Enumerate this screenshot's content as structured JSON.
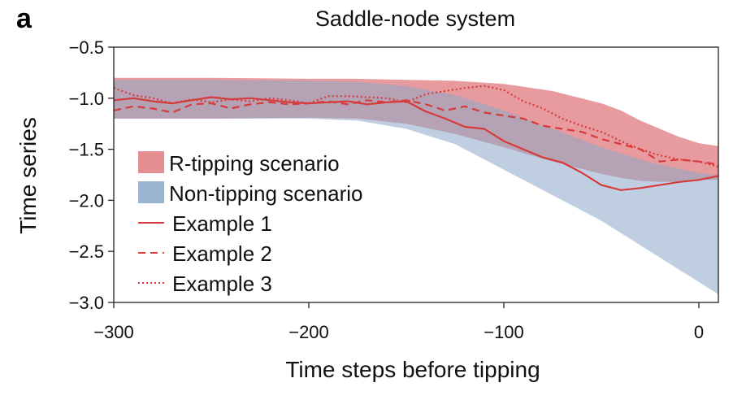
{
  "panel_label": "a",
  "chart_data": {
    "type": "area",
    "title": "Saddle-node system",
    "xlabel": "Time steps before tipping",
    "ylabel": "Time series",
    "xlim": [
      -300,
      10
    ],
    "ylim": [
      -3.0,
      -0.5
    ],
    "xticks": [
      -300,
      -200,
      -100,
      0
    ],
    "xtick_labels": [
      "−300",
      "−200",
      "−100",
      "0"
    ],
    "yticks": [
      -0.5,
      -1.0,
      -1.5,
      -2.0,
      -2.5,
      -3.0
    ],
    "ytick_labels": [
      "−0.5",
      "−1.0",
      "−1.5",
      "−2.0",
      "−2.5",
      "−3.0"
    ],
    "grid": false,
    "legend_position": "lower-left",
    "bands": [
      {
        "name": "R-tipping scenario",
        "color": "#e07a7e",
        "x": [
          -300,
          -250,
          -200,
          -175,
          -150,
          -125,
          -100,
          -75,
          -50,
          -40,
          -30,
          -20,
          -10,
          0,
          10
        ],
        "upper": [
          -0.8,
          -0.8,
          -0.81,
          -0.81,
          -0.82,
          -0.83,
          -0.86,
          -0.93,
          -1.05,
          -1.12,
          -1.22,
          -1.3,
          -1.38,
          -1.44,
          -1.47
        ],
        "lower": [
          -1.2,
          -1.2,
          -1.19,
          -1.2,
          -1.25,
          -1.35,
          -1.48,
          -1.62,
          -1.74,
          -1.78,
          -1.81,
          -1.82,
          -1.82,
          -1.8,
          -1.8
        ]
      },
      {
        "name": "Non-tipping scenario",
        "color": "#8aa8c8",
        "x": [
          -300,
          -250,
          -200,
          -175,
          -150,
          -125,
          -100,
          -75,
          -50,
          -25,
          0,
          10
        ],
        "upper": [
          -0.82,
          -0.82,
          -0.83,
          -0.84,
          -0.88,
          -0.97,
          -1.12,
          -1.3,
          -1.48,
          -1.63,
          -1.73,
          -1.76
        ],
        "lower": [
          -1.2,
          -1.2,
          -1.2,
          -1.22,
          -1.3,
          -1.45,
          -1.7,
          -1.95,
          -2.2,
          -2.5,
          -2.8,
          -2.92
        ]
      }
    ],
    "series": [
      {
        "name": "Example 1",
        "style": "solid",
        "color": "#d73a3a",
        "x": [
          -300,
          -290,
          -280,
          -270,
          -260,
          -250,
          -240,
          -230,
          -220,
          -210,
          -200,
          -190,
          -180,
          -170,
          -160,
          -150,
          -140,
          -130,
          -120,
          -110,
          -100,
          -90,
          -80,
          -70,
          -60,
          -50,
          -40,
          -30,
          -20,
          -10,
          0,
          10
        ],
        "y": [
          -1.02,
          -1.0,
          -1.03,
          -1.05,
          -1.02,
          -0.99,
          -1.01,
          -1.0,
          -1.02,
          -1.04,
          -1.05,
          -1.04,
          -1.03,
          -1.06,
          -1.04,
          -1.03,
          -1.13,
          -1.2,
          -1.28,
          -1.3,
          -1.42,
          -1.5,
          -1.58,
          -1.63,
          -1.73,
          -1.85,
          -1.9,
          -1.88,
          -1.85,
          -1.82,
          -1.8,
          -1.76
        ]
      },
      {
        "name": "Example 2",
        "style": "dashed",
        "color": "#d73a3a",
        "x": [
          -300,
          -290,
          -280,
          -270,
          -260,
          -250,
          -240,
          -230,
          -220,
          -210,
          -200,
          -190,
          -180,
          -170,
          -160,
          -150,
          -140,
          -130,
          -120,
          -110,
          -100,
          -90,
          -80,
          -70,
          -60,
          -50,
          -40,
          -30,
          -20,
          -10,
          0,
          10
        ],
        "y": [
          -1.12,
          -1.08,
          -1.1,
          -1.14,
          -1.06,
          -1.05,
          -1.1,
          -1.06,
          -1.04,
          -1.06,
          -1.05,
          -1.03,
          -1.06,
          -1.02,
          -1.04,
          -1.02,
          -1.06,
          -1.12,
          -1.08,
          -1.14,
          -1.17,
          -1.2,
          -1.27,
          -1.3,
          -1.33,
          -1.4,
          -1.45,
          -1.5,
          -1.62,
          -1.6,
          -1.62,
          -1.65
        ]
      },
      {
        "name": "Example 3",
        "style": "dotted",
        "color": "#d73a3a",
        "x": [
          -300,
          -290,
          -280,
          -270,
          -260,
          -250,
          -240,
          -230,
          -220,
          -210,
          -200,
          -190,
          -180,
          -170,
          -160,
          -150,
          -140,
          -130,
          -120,
          -110,
          -100,
          -90,
          -80,
          -70,
          -60,
          -50,
          -40,
          -30,
          -20,
          -10,
          0,
          10
        ],
        "y": [
          -0.9,
          -0.97,
          -1.0,
          -1.05,
          -1.01,
          -1.04,
          -1.01,
          -1.03,
          -1.0,
          -1.02,
          -1.05,
          -0.98,
          -0.98,
          -0.99,
          -1.0,
          -1.04,
          -0.96,
          -0.93,
          -0.9,
          -0.88,
          -0.92,
          -1.03,
          -1.1,
          -1.2,
          -1.27,
          -1.33,
          -1.42,
          -1.5,
          -1.56,
          -1.6,
          -1.62,
          -1.67
        ]
      }
    ]
  }
}
